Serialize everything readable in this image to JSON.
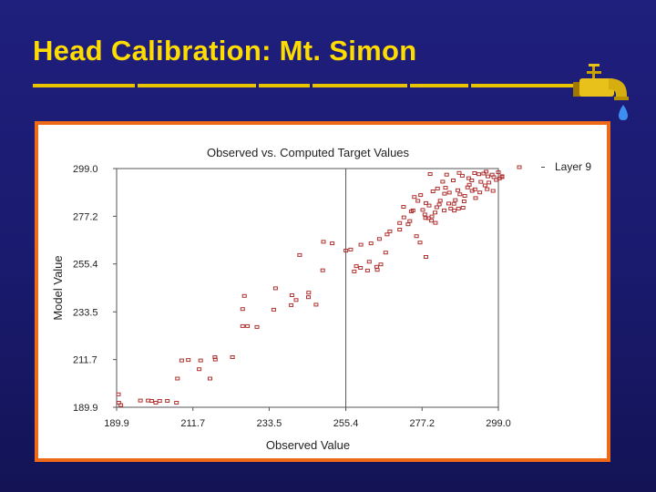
{
  "slide": {
    "title": "Head Calibration: Mt. Simon"
  },
  "colors": {
    "background": "#1a1a6e",
    "title": "#ffdc00",
    "frame": "#ef6a16",
    "marker": "#b03030"
  },
  "icons": {
    "faucet": "faucet-icon"
  },
  "chart_data": {
    "type": "scatter",
    "title": "Observed vs. Computed Target Values",
    "xlabel": "Observed Value",
    "ylabel": "Model Value",
    "xlim": [
      189.9,
      299.0
    ],
    "ylim": [
      189.9,
      299.0
    ],
    "x_ticks": [
      "189.9",
      "211.7",
      "233.5",
      "255.4",
      "277.2",
      "299.0"
    ],
    "y_ticks": [
      "299.0",
      "277.2",
      "255.4",
      "233.5",
      "211.7",
      "189.9"
    ],
    "grid": false,
    "legend_position": "top-right",
    "reference_line": "vertical at 255.4",
    "series": [
      {
        "name": "Layer 9",
        "color": "#b03030",
        "points": [
          [
            189.9,
            195.8
          ],
          [
            190.5,
            192.0
          ],
          [
            191.1,
            190.9
          ],
          [
            196.7,
            193.0
          ],
          [
            198.9,
            193.0
          ],
          [
            199.9,
            192.8
          ],
          [
            201.1,
            192.0
          ],
          [
            202.2,
            192.8
          ],
          [
            204.4,
            192.8
          ],
          [
            207.0,
            192.0
          ],
          [
            207.3,
            203.0
          ],
          [
            208.5,
            211.3
          ],
          [
            210.4,
            211.5
          ],
          [
            213.9,
            211.3
          ],
          [
            213.5,
            207.3
          ],
          [
            216.6,
            203.0
          ],
          [
            218.0,
            212.8
          ],
          [
            218.1,
            211.7
          ],
          [
            223.0,
            212.8
          ],
          [
            225.9,
            227.0
          ],
          [
            225.9,
            234.8
          ],
          [
            227.3,
            227.0
          ],
          [
            226.4,
            240.8
          ],
          [
            230.0,
            226.6
          ],
          [
            234.8,
            234.5
          ],
          [
            239.8,
            236.6
          ],
          [
            235.3,
            244.3
          ],
          [
            240.0,
            241.1
          ],
          [
            241.2,
            238.9
          ],
          [
            244.7,
            240.2
          ],
          [
            244.8,
            242.3
          ],
          [
            246.9,
            236.8
          ],
          [
            242.2,
            259.5
          ],
          [
            248.8,
            252.5
          ],
          [
            249.0,
            265.5
          ],
          [
            251.5,
            264.8
          ],
          [
            255.4,
            261.5
          ],
          [
            257.8,
            252.0
          ],
          [
            258.4,
            254.4
          ],
          [
            259.6,
            253.6
          ],
          [
            261.6,
            252.4
          ],
          [
            256.8,
            262.0
          ],
          [
            262.1,
            256.4
          ],
          [
            264.4,
            252.7
          ],
          [
            264.2,
            254.1
          ],
          [
            265.4,
            255.2
          ],
          [
            266.8,
            260.6
          ],
          [
            259.7,
            264.2
          ],
          [
            262.6,
            264.8
          ],
          [
            265.0,
            266.8
          ],
          [
            267.2,
            268.9
          ],
          [
            268.0,
            270.3
          ],
          [
            270.8,
            271.1
          ],
          [
            270.8,
            274.1
          ],
          [
            273.2,
            273.5
          ],
          [
            273.7,
            275.0
          ],
          [
            275.6,
            268.1
          ],
          [
            276.6,
            265.2
          ],
          [
            278.3,
            258.6
          ],
          [
            271.9,
            281.5
          ],
          [
            272.0,
            276.7
          ],
          [
            274.1,
            279.4
          ],
          [
            275.0,
            286.0
          ],
          [
            276.0,
            284.2
          ],
          [
            276.8,
            286.9
          ],
          [
            277.4,
            280.1
          ],
          [
            278.0,
            278.0
          ],
          [
            278.2,
            276.4
          ],
          [
            279.0,
            276.3
          ],
          [
            279.9,
            275.2
          ],
          [
            280.0,
            277.1
          ],
          [
            280.9,
            278.9
          ],
          [
            281.0,
            274.2
          ],
          [
            281.4,
            281.3
          ],
          [
            282.1,
            282.6
          ],
          [
            282.4,
            284.3
          ],
          [
            283.5,
            279.9
          ],
          [
            283.6,
            287.5
          ],
          [
            284.2,
            296.2
          ],
          [
            284.8,
            283.0
          ],
          [
            285.0,
            288.0
          ],
          [
            285.4,
            280.7
          ],
          [
            286.4,
            279.8
          ],
          [
            286.3,
            282.9
          ],
          [
            286.7,
            284.6
          ],
          [
            287.4,
            289.1
          ],
          [
            287.6,
            280.7
          ],
          [
            288.7,
            295.7
          ],
          [
            288.9,
            281.1
          ],
          [
            289.2,
            284.0
          ],
          [
            289.4,
            286.5
          ],
          [
            290.2,
            290.4
          ],
          [
            290.7,
            291.6
          ],
          [
            291.4,
            293.6
          ],
          [
            291.5,
            288.8
          ],
          [
            292.3,
            289.5
          ],
          [
            292.5,
            285.5
          ],
          [
            293.4,
            296.4
          ],
          [
            293.7,
            288.1
          ],
          [
            294.0,
            292.9
          ],
          [
            294.8,
            296.7
          ],
          [
            295.2,
            291.3
          ],
          [
            296.0,
            295.4
          ],
          [
            296.3,
            292.6
          ],
          [
            297.2,
            296.2
          ],
          [
            297.7,
            295.1
          ],
          [
            298.4,
            293.8
          ],
          [
            299.0,
            297.3
          ],
          [
            299.3,
            294.5
          ],
          [
            300.3,
            295.5
          ],
          [
            302.5,
            295.1
          ],
          [
            286.1,
            293.6
          ],
          [
            283.9,
            290.2
          ],
          [
            279.5,
            296.5
          ],
          [
            287.8,
            297.0
          ],
          [
            295.5,
            297.6
          ],
          [
            292.2,
            296.9
          ],
          [
            290.5,
            294.6
          ],
          [
            280.3,
            288.6
          ],
          [
            288.0,
            287.2
          ],
          [
            297.5,
            288.8
          ],
          [
            295.8,
            289.6
          ],
          [
            278.3,
            283.2
          ],
          [
            283.1,
            293.0
          ],
          [
            281.6,
            289.9
          ],
          [
            274.6,
            279.9
          ],
          [
            279.2,
            282.1
          ]
        ]
      }
    ]
  }
}
